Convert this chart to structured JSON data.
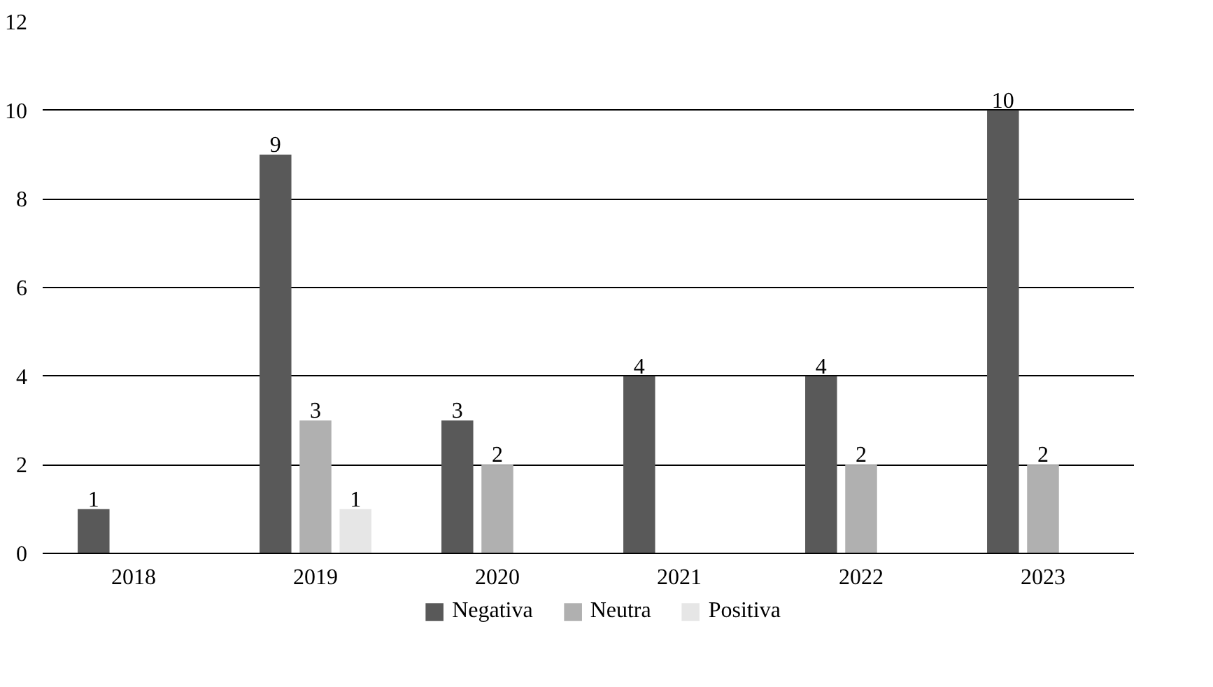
{
  "chart_data": {
    "type": "bar",
    "categories": [
      "2018",
      "2019",
      "2020",
      "2021",
      "2022",
      "2023"
    ],
    "series": [
      {
        "name": "Negativa",
        "color": "#595959",
        "values": [
          1,
          9,
          3,
          4,
          4,
          10
        ]
      },
      {
        "name": "Neutra",
        "color": "#b0b0b0",
        "values": [
          null,
          3,
          2,
          null,
          2,
          2
        ]
      },
      {
        "name": "Positiva",
        "color": "#e6e6e6",
        "values": [
          null,
          1,
          null,
          null,
          null,
          null
        ]
      }
    ],
    "ylim": [
      0,
      12
    ],
    "yticks": [
      0,
      2,
      4,
      6,
      8,
      10,
      12
    ],
    "grid": "y",
    "legend": "bottom",
    "data_labels": true
  }
}
